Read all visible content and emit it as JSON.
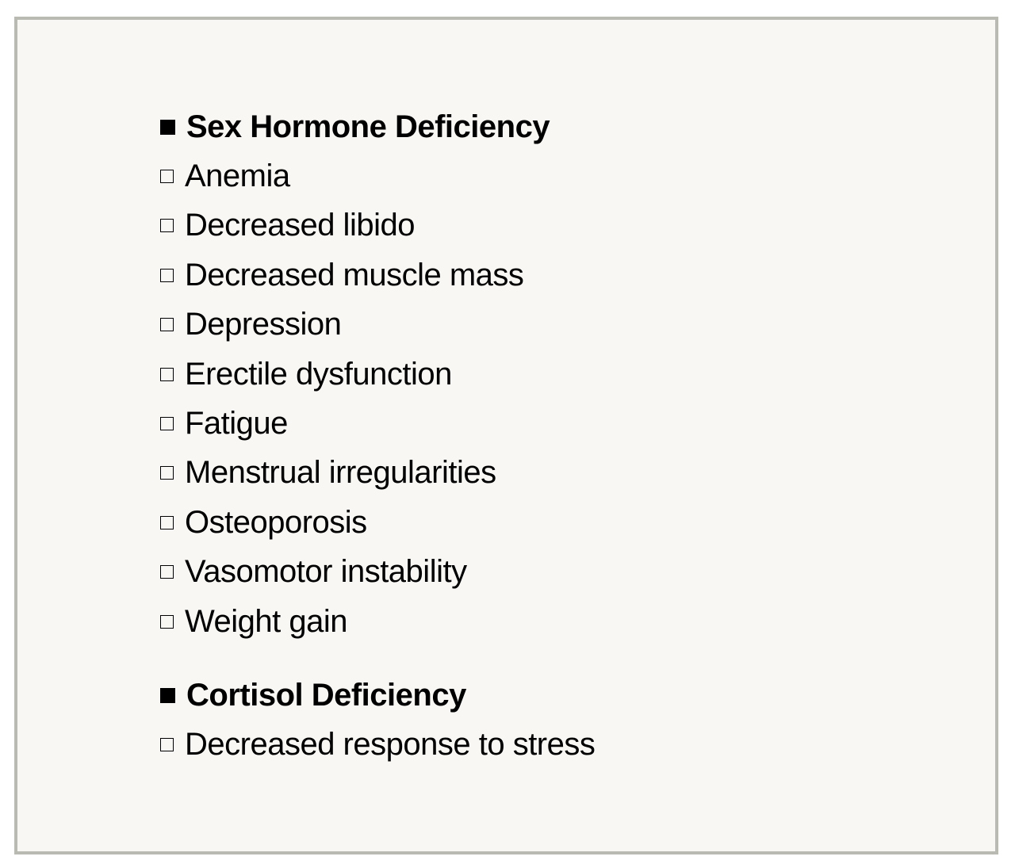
{
  "sections": [
    {
      "heading": "Sex Hormone Deficiency",
      "items": [
        "Anemia",
        "Decreased libido",
        "Decreased muscle mass",
        "Depression",
        "Erectile dysfunction",
        "Fatigue",
        "Menstrual irregularities",
        "Osteoporosis",
        "Vasomotor instability",
        "Weight gain"
      ]
    },
    {
      "heading": "Cortisol Deficiency",
      "items": [
        "Decreased response to stress"
      ]
    }
  ],
  "icons": {
    "heading_bullet": "filled-square-icon",
    "item_bullet": "empty-square-icon"
  }
}
